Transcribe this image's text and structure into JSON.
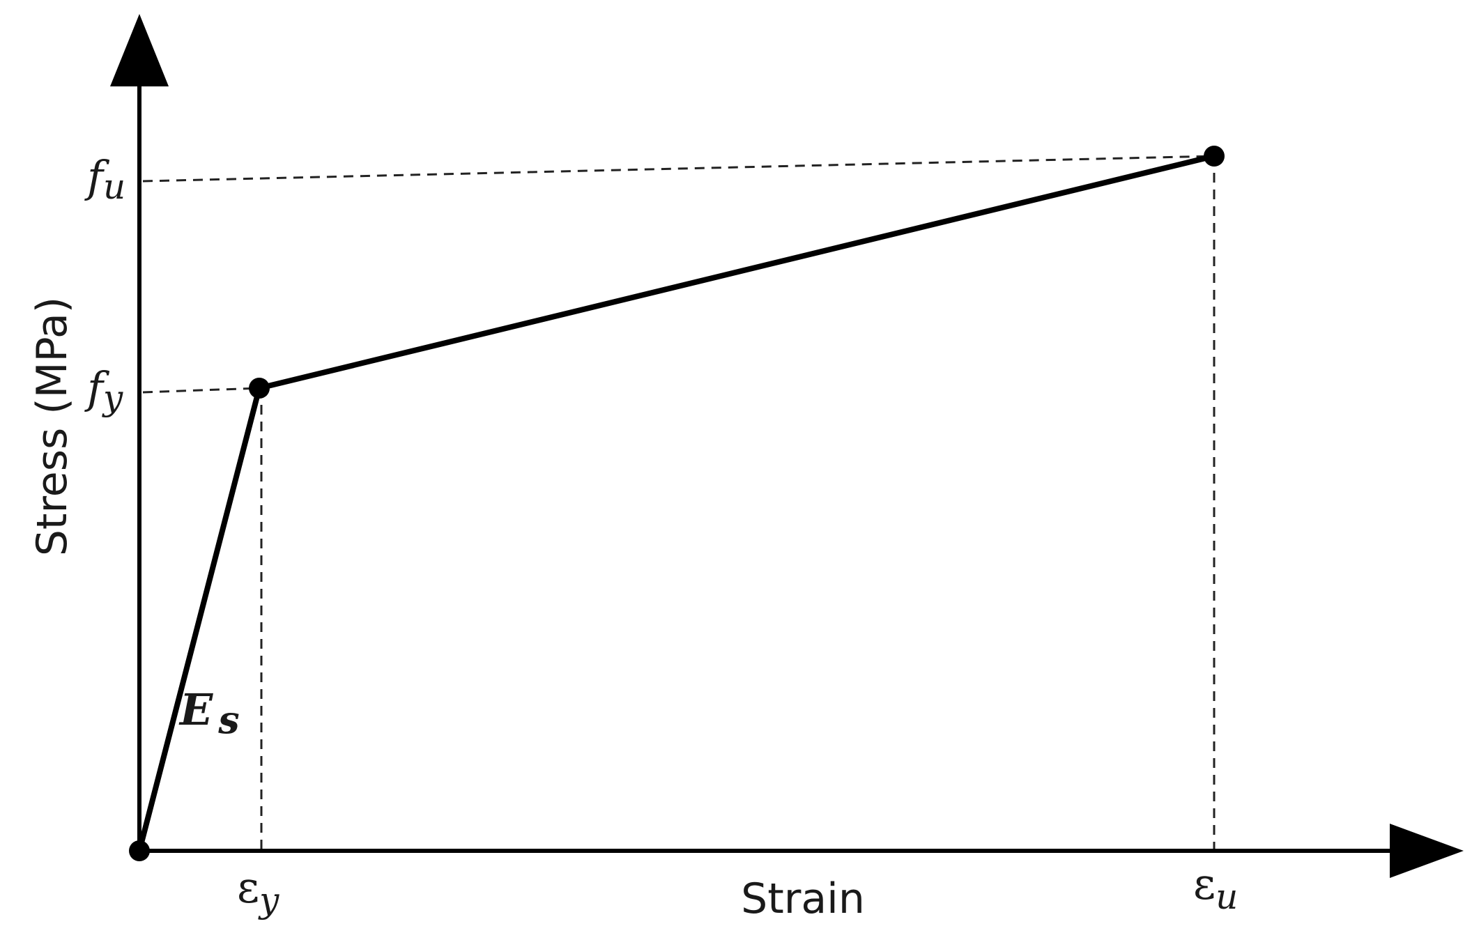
{
  "diagram": {
    "y_axis_title": "Stress (MPa)",
    "x_axis_title": "Strain",
    "labels": {
      "fu": {
        "base": "f",
        "sub": "u"
      },
      "fy": {
        "base": "f",
        "sub": "y"
      },
      "ey": {
        "base": "ε",
        "sub": "y"
      },
      "eu": {
        "base": "ε",
        "sub": "u"
      },
      "es": {
        "base": "E",
        "sub": "s"
      }
    },
    "colors": {
      "ink": "#000000",
      "background": "#ffffff"
    }
  },
  "chart_data": {
    "type": "line",
    "series": [
      {
        "points": [
          {
            "strain": "0",
            "stress": "0"
          },
          {
            "strain": "ε_y",
            "stress": "f_y"
          },
          {
            "strain": "ε_u",
            "stress": "f_u"
          }
        ]
      }
    ],
    "grid": false
  }
}
